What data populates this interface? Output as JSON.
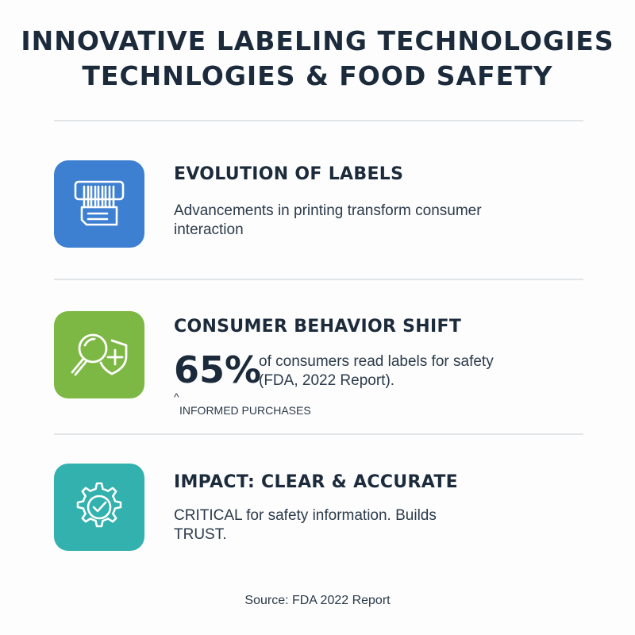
{
  "title": {
    "line1": "INNOVATIVE LABELING TECHNOLOGIES",
    "line2": "TECHNLOGIES & FOOD SAFETY"
  },
  "sections": [
    {
      "heading": "EVOLUTION OF LABELS",
      "body": "Advancements in printing transform consumer interaction",
      "icon": "label-printer-icon",
      "color": "#3a7fcf"
    },
    {
      "heading": "CONSUMER BEHAVIOR SHIFT",
      "stat": "65%",
      "stat_text": "of consumers read labels for safety (FDA, 2022 Report).",
      "caret": "^",
      "caption": "INFORMED PURCHASES",
      "icon": "magnifier-shield-icon",
      "color": "#7ab840"
    },
    {
      "heading": "IMPACT: CLEAR & ACCURATE",
      "body": "CRITICAL for safety information. Builds TRUST.",
      "icon": "gear-check-icon",
      "color": "#2fb0ad"
    }
  ],
  "source": "Source: FDA 2022 Report"
}
